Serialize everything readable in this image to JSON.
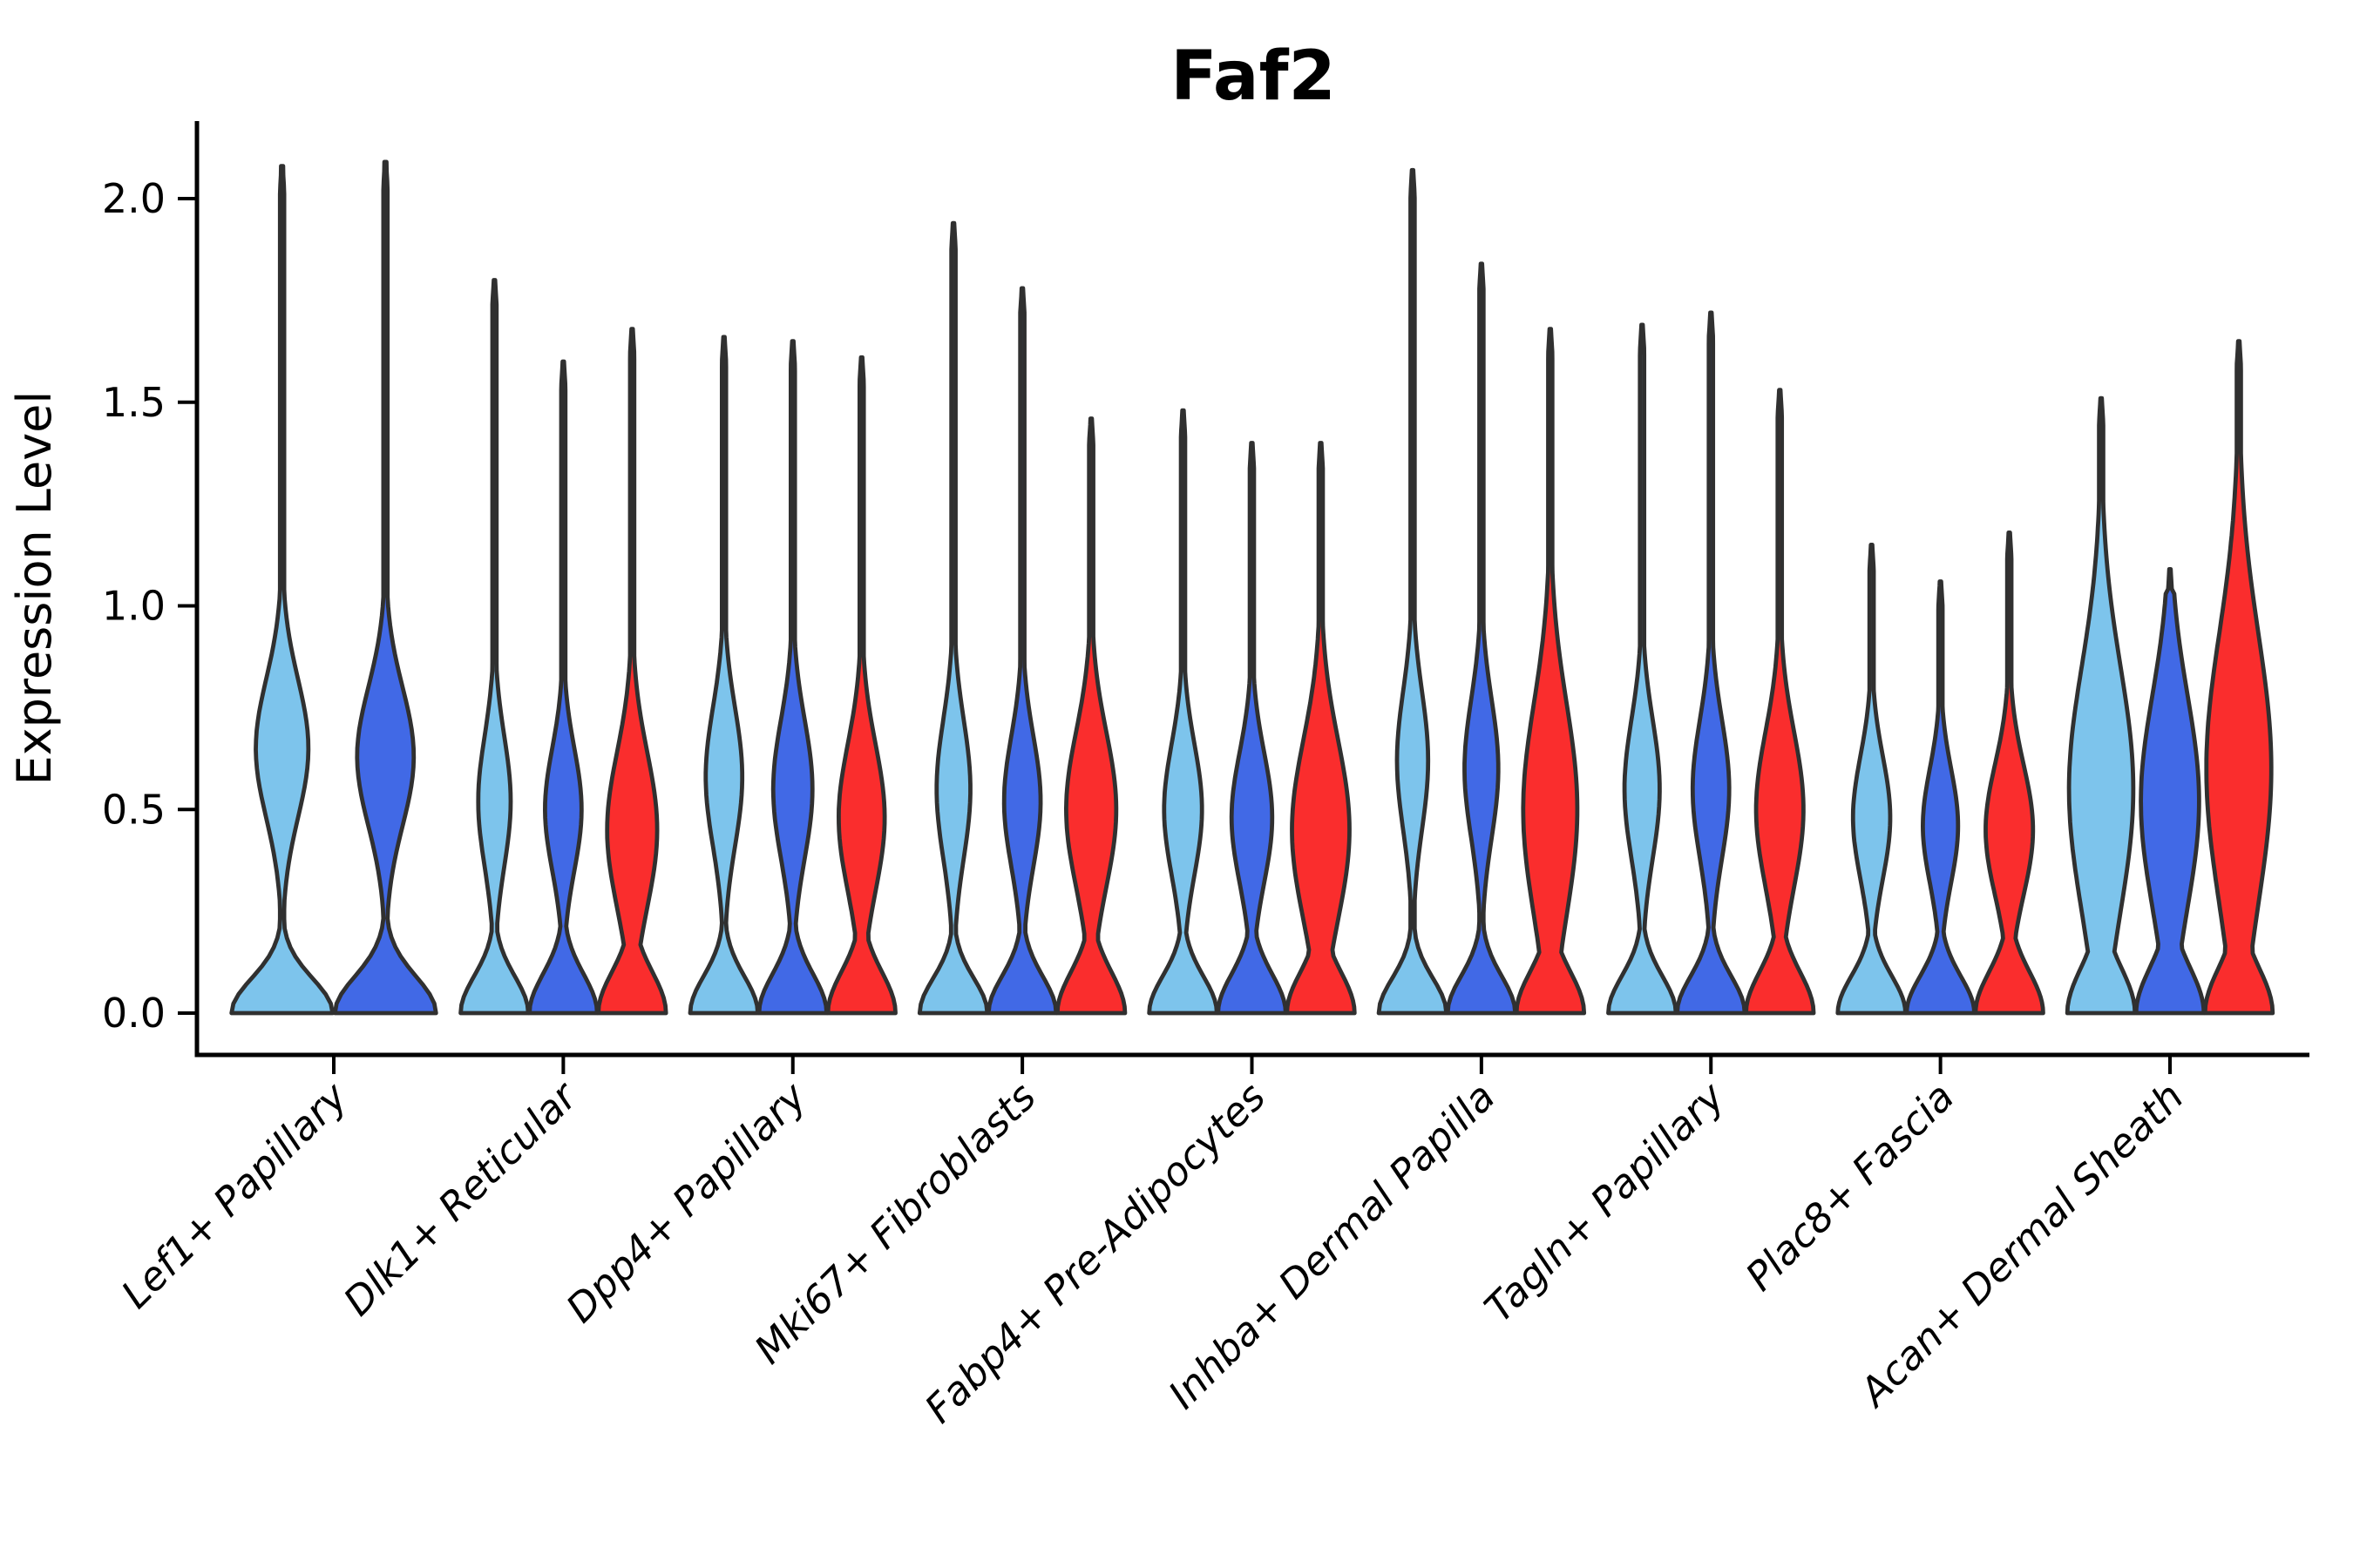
{
  "figure": {
    "title": "Faf2",
    "ylabel": "Expression Level"
  },
  "chart_data": {
    "type": "violin",
    "title": "Faf2",
    "xlabel": "",
    "ylabel": "Expression Level",
    "ylim": [
      -0.1,
      2.19
    ],
    "yticks": [
      {
        "value": 0.0,
        "label": "0.0"
      },
      {
        "value": 0.5,
        "label": "0.5"
      },
      {
        "value": 1.0,
        "label": "1.0"
      },
      {
        "value": 1.5,
        "label": "1.5"
      },
      {
        "value": 2.0,
        "label": "2.0"
      }
    ],
    "grid": false,
    "legend": "none",
    "palette": {
      "light_blue": "#7DC4EC",
      "royal_blue": "#4169E6",
      "red": "#FA2D2D"
    },
    "outline_color": "#303030",
    "categories": [
      "Lef1+ Papillary",
      "Dlk1+ Reticular",
      "Dpp4+ Papillary",
      "Mki67+ Fibroblasts",
      "Fabp4+ Pre-Adipocytes",
      "Inhba+ Dermal Papilla",
      "Tagln+ Papillary",
      "Plac8+ Fascia",
      "Acan+ Dermal Sheath"
    ],
    "groups": [
      {
        "category": "Lef1+ Papillary",
        "violins": [
          {
            "color": "light_blue",
            "min": 0.0,
            "max": 2.08,
            "bulge_center": 0.65,
            "bulge_amp": 0.52,
            "bulge_sigma": 0.17,
            "zero_sigma": 0.085
          },
          {
            "color": "royal_blue",
            "min": 0.0,
            "max": 2.09,
            "bulge_center": 0.63,
            "bulge_amp": 0.56,
            "bulge_sigma": 0.17,
            "zero_sigma": 0.09
          }
        ]
      },
      {
        "category": "Dlk1+ Reticular",
        "violins": [
          {
            "color": "light_blue",
            "min": 0.0,
            "max": 1.8,
            "bulge_center": 0.52,
            "bulge_amp": 0.48,
            "bulge_sigma": 0.16,
            "zero_sigma": 0.09
          },
          {
            "color": "royal_blue",
            "min": 0.0,
            "max": 1.6,
            "bulge_center": 0.5,
            "bulge_amp": 0.54,
            "bulge_sigma": 0.15,
            "zero_sigma": 0.095
          },
          {
            "color": "red",
            "min": 0.0,
            "max": 1.68,
            "bulge_center": 0.45,
            "bulge_amp": 0.74,
            "bulge_sigma": 0.19,
            "zero_sigma": 0.1
          }
        ]
      },
      {
        "category": "Dpp4+ Papillary",
        "violins": [
          {
            "color": "light_blue",
            "min": 0.0,
            "max": 1.66,
            "bulge_center": 0.58,
            "bulge_amp": 0.54,
            "bulge_sigma": 0.17,
            "zero_sigma": 0.09
          },
          {
            "color": "royal_blue",
            "min": 0.0,
            "max": 1.65,
            "bulge_center": 0.55,
            "bulge_amp": 0.58,
            "bulge_sigma": 0.17,
            "zero_sigma": 0.095
          },
          {
            "color": "red",
            "min": 0.0,
            "max": 1.61,
            "bulge_center": 0.48,
            "bulge_amp": 0.68,
            "bulge_sigma": 0.18,
            "zero_sigma": 0.1
          }
        ]
      },
      {
        "category": "Mki67+ Fibroblasts",
        "violins": [
          {
            "color": "light_blue",
            "min": 0.0,
            "max": 1.94,
            "bulge_center": 0.55,
            "bulge_amp": 0.5,
            "bulge_sigma": 0.17,
            "zero_sigma": 0.085
          },
          {
            "color": "royal_blue",
            "min": 0.0,
            "max": 1.78,
            "bulge_center": 0.52,
            "bulge_amp": 0.54,
            "bulge_sigma": 0.16,
            "zero_sigma": 0.09
          },
          {
            "color": "red",
            "min": 0.0,
            "max": 1.46,
            "bulge_center": 0.5,
            "bulge_amp": 0.74,
            "bulge_sigma": 0.19,
            "zero_sigma": 0.1
          }
        ]
      },
      {
        "category": "Fabp4+ Pre-Adipocytes",
        "violins": [
          {
            "color": "light_blue",
            "min": 0.0,
            "max": 1.48,
            "bulge_center": 0.5,
            "bulge_amp": 0.56,
            "bulge_sigma": 0.16,
            "zero_sigma": 0.09
          },
          {
            "color": "royal_blue",
            "min": 0.0,
            "max": 1.4,
            "bulge_center": 0.48,
            "bulge_amp": 0.6,
            "bulge_sigma": 0.16,
            "zero_sigma": 0.095
          },
          {
            "color": "red",
            "min": 0.0,
            "max": 1.4,
            "bulge_center": 0.45,
            "bulge_amp": 0.85,
            "bulge_sigma": 0.22,
            "zero_sigma": 0.1
          }
        ]
      },
      {
        "category": "Inhba+ Dermal Papilla",
        "violins": [
          {
            "color": "light_blue",
            "min": 0.0,
            "max": 2.07,
            "bulge_center": 0.62,
            "bulge_amp": 0.46,
            "bulge_sigma": 0.17,
            "zero_sigma": 0.085
          },
          {
            "color": "royal_blue",
            "min": 0.0,
            "max": 1.84,
            "bulge_center": 0.6,
            "bulge_amp": 0.5,
            "bulge_sigma": 0.17,
            "zero_sigma": 0.09
          },
          {
            "color": "red",
            "min": 0.0,
            "max": 1.68,
            "bulge_center": 0.5,
            "bulge_amp": 0.8,
            "bulge_sigma": 0.26,
            "zero_sigma": 0.1
          }
        ]
      },
      {
        "category": "Tagln+ Papillary",
        "violins": [
          {
            "color": "light_blue",
            "min": 0.0,
            "max": 1.69,
            "bulge_center": 0.55,
            "bulge_amp": 0.52,
            "bulge_sigma": 0.17,
            "zero_sigma": 0.09
          },
          {
            "color": "royal_blue",
            "min": 0.0,
            "max": 1.72,
            "bulge_center": 0.55,
            "bulge_amp": 0.54,
            "bulge_sigma": 0.17,
            "zero_sigma": 0.09
          },
          {
            "color": "red",
            "min": 0.0,
            "max": 1.53,
            "bulge_center": 0.5,
            "bulge_amp": 0.7,
            "bulge_sigma": 0.19,
            "zero_sigma": 0.1
          }
        ]
      },
      {
        "category": "Plac8+ Fascia",
        "violins": [
          {
            "color": "light_blue",
            "min": 0.0,
            "max": 1.15,
            "bulge_center": 0.48,
            "bulge_amp": 0.55,
            "bulge_sigma": 0.15,
            "zero_sigma": 0.09
          },
          {
            "color": "royal_blue",
            "min": 0.0,
            "max": 1.06,
            "bulge_center": 0.46,
            "bulge_amp": 0.52,
            "bulge_sigma": 0.14,
            "zero_sigma": 0.09
          },
          {
            "color": "red",
            "min": 0.0,
            "max": 1.18,
            "bulge_center": 0.45,
            "bulge_amp": 0.7,
            "bulge_sigma": 0.16,
            "zero_sigma": 0.1
          }
        ]
      },
      {
        "category": "Acan+ Dermal Sheath",
        "violins": [
          {
            "color": "light_blue",
            "min": 0.0,
            "max": 1.51,
            "bulge_center": 0.55,
            "bulge_amp": 0.95,
            "bulge_sigma": 0.3,
            "zero_sigma": 0.11
          },
          {
            "color": "royal_blue",
            "min": 0.0,
            "max": 1.09,
            "bulge_center": 0.52,
            "bulge_amp": 0.86,
            "bulge_sigma": 0.26,
            "zero_sigma": 0.11
          },
          {
            "color": "red",
            "min": 0.0,
            "max": 1.65,
            "bulge_center": 0.6,
            "bulge_amp": 0.96,
            "bulge_sigma": 0.33,
            "zero_sigma": 0.11
          }
        ]
      }
    ]
  }
}
